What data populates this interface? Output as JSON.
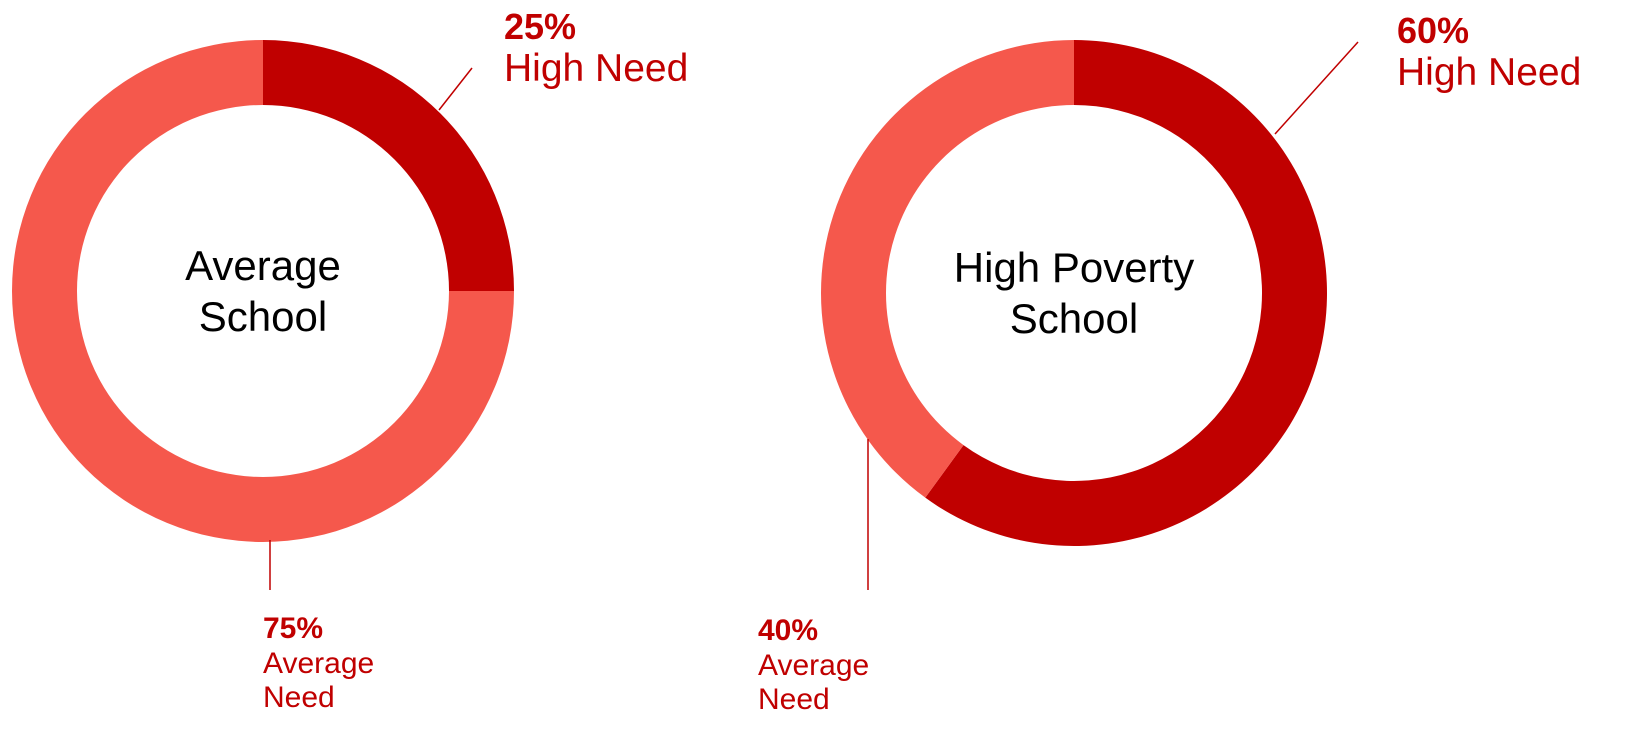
{
  "chart_data": [
    {
      "type": "donut",
      "center_label": "Average School",
      "categories": [
        "High Need",
        "Average Need"
      ],
      "values": [
        25,
        75
      ],
      "value_labels": [
        "25%",
        "75%"
      ],
      "colors": [
        "#c00000",
        "#f5584c"
      ]
    },
    {
      "type": "donut",
      "center_label": "High Poverty School",
      "categories": [
        "High Need",
        "Average Need"
      ],
      "values": [
        60,
        40
      ],
      "value_labels": [
        "60%",
        "40%"
      ],
      "colors": [
        "#c00000",
        "#f5584c"
      ]
    }
  ]
}
